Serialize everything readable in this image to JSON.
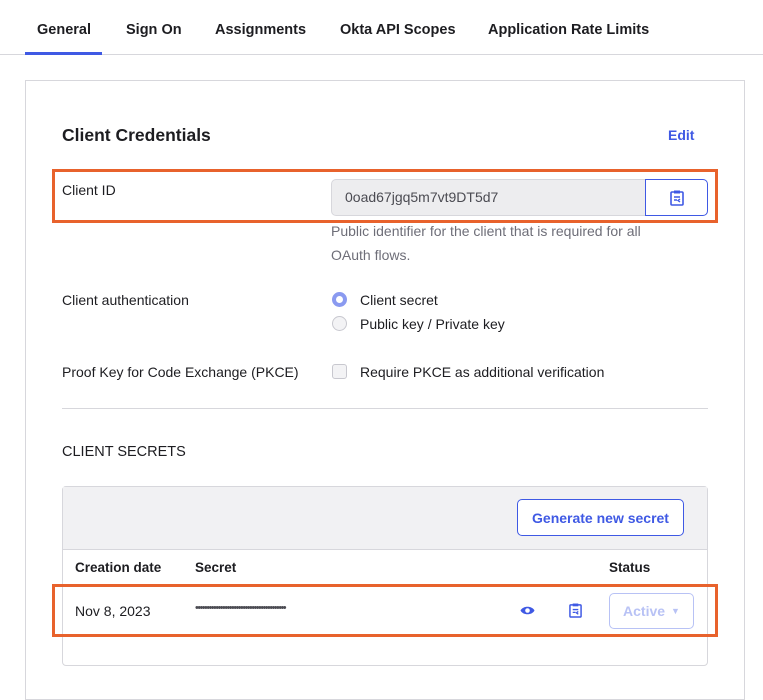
{
  "tabs": [
    {
      "label": "General",
      "active": true
    },
    {
      "label": "Sign On"
    },
    {
      "label": "Assignments"
    },
    {
      "label": "Okta API Scopes"
    },
    {
      "label": "Application Rate Limits"
    }
  ],
  "credentials": {
    "title": "Client Credentials",
    "edit_label": "Edit",
    "client_id_label": "Client ID",
    "client_id_value": "0oad67jgq5m7vt9DT5d7",
    "client_id_help": "Public identifier for the client that is required for all OAuth flows.",
    "auth_label": "Client authentication",
    "auth_options": [
      {
        "label": "Client secret",
        "selected": true
      },
      {
        "label": "Public key / Private key",
        "selected": false
      }
    ],
    "pkce_label": "Proof Key for Code Exchange (PKCE)",
    "pkce_option": "Require PKCE as additional verification",
    "pkce_checked": false
  },
  "secrets": {
    "title": "CLIENT SECRETS",
    "generate_label": "Generate new secret",
    "columns": [
      "Creation date",
      "Secret",
      "Status"
    ],
    "rows": [
      {
        "date": "Nov 8, 2023",
        "secret": "••••••••••••••••••••••••••••••••••••••••",
        "status": "Active"
      }
    ]
  },
  "colors": {
    "accent": "#3f59e4",
    "highlight": "#e8622c"
  }
}
